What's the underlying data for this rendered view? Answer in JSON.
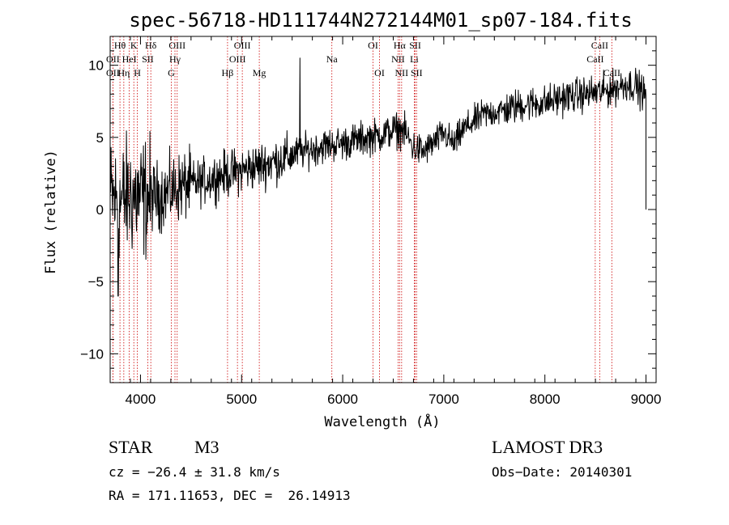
{
  "chart_data": {
    "type": "line",
    "title": "spec-56718-HD111744N272144M01_sp07-184.fits",
    "xlabel": "Wavelength (Å)",
    "ylabel": "Flux (relative)",
    "xlim": [
      3700,
      9100
    ],
    "ylim": [
      -12,
      12
    ],
    "x_ticks": [
      4000,
      5000,
      6000,
      7000,
      8000,
      9000
    ],
    "y_ticks": [
      -10,
      -5,
      0,
      5,
      10
    ],
    "y_tick_labels": [
      "−10",
      "−5",
      "0",
      "5",
      "10"
    ],
    "line_color": "#000000",
    "marker_color": "#cc0000",
    "emission_lines": [
      {
        "label": "Hθ",
        "x": 3797,
        "row": 0
      },
      {
        "label": "OII",
        "x": 3727,
        "row": 1
      },
      {
        "label": "OII",
        "x": 3727,
        "row": 2
      },
      {
        "label": "Hη",
        "x": 3835,
        "row": 2
      },
      {
        "label": "HeI",
        "x": 3889,
        "row": 1
      },
      {
        "label": "K",
        "x": 3934,
        "row": 0
      },
      {
        "label": "H",
        "x": 3969,
        "row": 2
      },
      {
        "label": "SII",
        "x": 4072,
        "row": 1
      },
      {
        "label": "Hδ",
        "x": 4102,
        "row": 0
      },
      {
        "label": "OIII",
        "x": 4363,
        "row": 0
      },
      {
        "label": "Hγ",
        "x": 4341,
        "row": 1
      },
      {
        "label": "G",
        "x": 4305,
        "row": 2
      },
      {
        "label": "Hβ",
        "x": 4861,
        "row": 2
      },
      {
        "label": "OIII",
        "x": 5007,
        "row": 0
      },
      {
        "label": "OIII",
        "x": 4959,
        "row": 1
      },
      {
        "label": "Mg",
        "x": 5175,
        "row": 2
      },
      {
        "label": "Na",
        "x": 5893,
        "row": 1
      },
      {
        "label": "OI",
        "x": 6300,
        "row": 0
      },
      {
        "label": "OI",
        "x": 6364,
        "row": 2
      },
      {
        "label": "Hα",
        "x": 6563,
        "row": 0
      },
      {
        "label": "NII",
        "x": 6548,
        "row": 1
      },
      {
        "label": "NII",
        "x": 6583,
        "row": 2
      },
      {
        "label": "SII",
        "x": 6717,
        "row": 0
      },
      {
        "label": "Li",
        "x": 6708,
        "row": 1
      },
      {
        "label": "SII",
        "x": 6731,
        "row": 2
      },
      {
        "label": "CaII",
        "x": 8542,
        "row": 0
      },
      {
        "label": "CaII",
        "x": 8498,
        "row": 1
      },
      {
        "label": "CaII",
        "x": 8662,
        "row": 2
      }
    ],
    "spectrum_anchors": {
      "x": [
        3700,
        3800,
        3900,
        4000,
        4200,
        4400,
        4600,
        4800,
        5000,
        5200,
        5400,
        5550,
        5600,
        5800,
        6000,
        6200,
        6400,
        6500,
        6600,
        6700,
        6800,
        6900,
        7000,
        7100,
        7200,
        7400,
        7600,
        7800,
        8000,
        8200,
        8400,
        8600,
        8800,
        8900,
        9000
      ],
      "y": [
        0.8,
        0.5,
        1.0,
        0.8,
        1.0,
        1.6,
        1.9,
        2.4,
        2.7,
        3.1,
        3.5,
        3.9,
        4.0,
        4.4,
        4.6,
        4.9,
        5.2,
        5.5,
        5.5,
        4.3,
        4.0,
        4.6,
        5.3,
        4.5,
        5.6,
        6.6,
        6.9,
        7.3,
        7.4,
        7.8,
        8.0,
        8.2,
        8.7,
        8.6,
        7.9
      ]
    },
    "features": {
      "sky_spike_x": 5577,
      "sky_spike_peak": 10.5,
      "blue_min_x": 3780,
      "blue_min_y": -6.0,
      "red_end_drop_y": 0.0
    }
  },
  "info": {
    "object_class": "STAR",
    "subclass": "M3",
    "cz": "cz = −26.4 ± 31.8 km/s",
    "coords": "RA = 171.11653, DEC =  26.14913",
    "survey": "LAMOST DR3",
    "obs_date": "Obs−Date: 20140301"
  }
}
